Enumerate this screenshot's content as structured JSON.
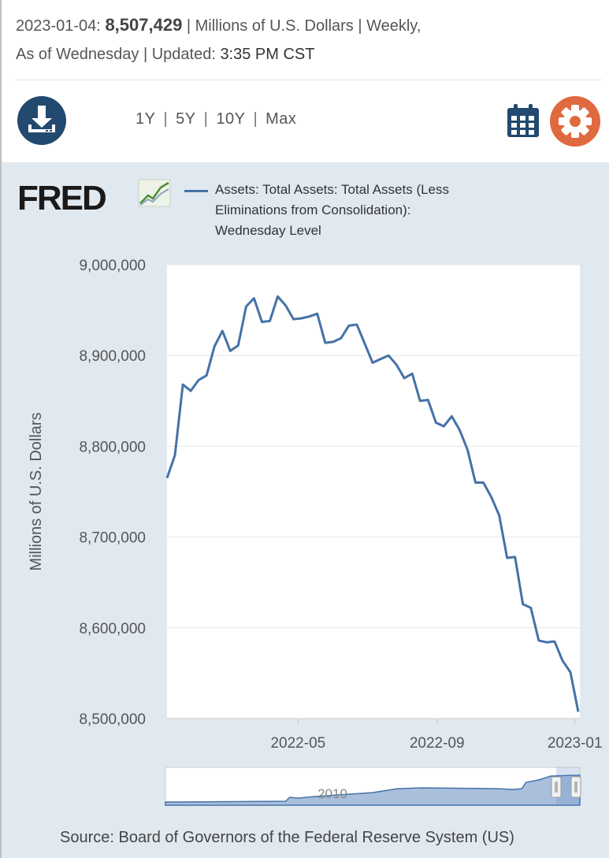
{
  "header": {
    "date": "2023-01-04:",
    "value": "8,507,429",
    "units_freq": "| Millions of U.S. Dollars | Weekly,",
    "as_of": "As of Wednesday |",
    "updated_label": "Updated:",
    "updated_time": "3:35 PM CST"
  },
  "toolbar": {
    "ranges": [
      "1Y",
      "5Y",
      "10Y",
      "Max"
    ],
    "download_icon": "download-icon",
    "calendar_icon": "calendar-icon",
    "gear_icon": "gear-icon"
  },
  "colors": {
    "series": "#4572a7",
    "chart_background": "#e1e9f0",
    "download_button": "#22496f",
    "settings_button": "#e06a3f"
  },
  "brand": {
    "logo_text": "FRED"
  },
  "legend": {
    "series_name": "Assets: Total Assets: Total Assets (Less Eliminations from Consolidation): Wednesday Level"
  },
  "source": "Source: Board of Governors of the Federal Reserve System (US)",
  "chart_data": {
    "type": "line",
    "title": "",
    "ylabel": "Millions of U.S. Dollars",
    "xlabel": "",
    "ylim": [
      8500000,
      9000000
    ],
    "yticks": [
      "9,000,000",
      "8,900,000",
      "8,800,000",
      "8,700,000",
      "8,600,000",
      "8,500,000"
    ],
    "xticks": [
      "2022-05",
      "2022-09",
      "2023-01"
    ],
    "grid": true,
    "legend_position": "top",
    "navigator_label": "2010",
    "series": [
      {
        "name": "Assets: Total Assets: Total Assets (Less Eliminations from Consolidation): Wednesday Level",
        "x": [
          "2022-01-05",
          "2022-01-12",
          "2022-01-19",
          "2022-01-26",
          "2022-02-02",
          "2022-02-09",
          "2022-02-16",
          "2022-02-23",
          "2022-03-02",
          "2022-03-09",
          "2022-03-16",
          "2022-03-23",
          "2022-03-30",
          "2022-04-06",
          "2022-04-13",
          "2022-04-20",
          "2022-04-27",
          "2022-05-04",
          "2022-05-11",
          "2022-05-18",
          "2022-05-25",
          "2022-06-01",
          "2022-06-08",
          "2022-06-15",
          "2022-06-22",
          "2022-06-29",
          "2022-07-06",
          "2022-07-13",
          "2022-07-20",
          "2022-07-27",
          "2022-08-03",
          "2022-08-10",
          "2022-08-17",
          "2022-08-24",
          "2022-08-31",
          "2022-09-07",
          "2022-09-14",
          "2022-09-21",
          "2022-09-28",
          "2022-10-05",
          "2022-10-12",
          "2022-10-19",
          "2022-10-26",
          "2022-11-02",
          "2022-11-09",
          "2022-11-16",
          "2022-11-23",
          "2022-11-30",
          "2022-12-07",
          "2022-12-14",
          "2022-12-21",
          "2022-12-28",
          "2023-01-04"
        ],
        "values": [
          8765000,
          8790000,
          8868000,
          8861000,
          8873000,
          8878000,
          8910000,
          8927000,
          8905000,
          8911000,
          8954000,
          8963000,
          8937000,
          8938000,
          8965000,
          8955000,
          8940000,
          8941000,
          8943000,
          8946000,
          8914000,
          8915000,
          8919000,
          8933000,
          8934000,
          8913000,
          8892000,
          8896000,
          8900000,
          8890000,
          8875000,
          8880000,
          8850000,
          8851000,
          8826000,
          8822000,
          8833000,
          8818000,
          8796000,
          8760000,
          8760000,
          8744000,
          8724000,
          8677000,
          8678000,
          8626000,
          8622000,
          8586000,
          8584000,
          8585000,
          8564000,
          8551000,
          8507429
        ]
      }
    ]
  }
}
